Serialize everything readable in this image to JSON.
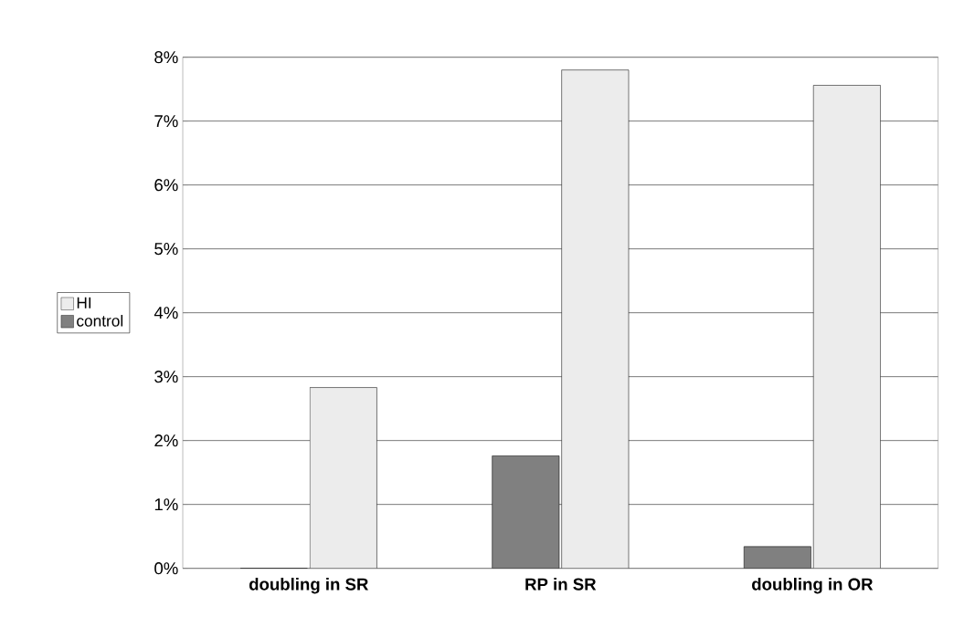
{
  "chart_data": {
    "type": "bar",
    "categories": [
      "doubling in SR",
      "RP in SR",
      "doubling in OR"
    ],
    "series": [
      {
        "name": "control",
        "color": "#808080",
        "values": [
          0,
          1.76,
          0.34
        ]
      },
      {
        "name": "HI",
        "color": "#ececec",
        "values": [
          2.83,
          7.8,
          7.56
        ]
      }
    ],
    "ylim": [
      0,
      8
    ],
    "yticks": [
      {
        "value": 0,
        "label": "0%"
      },
      {
        "value": 1,
        "label": "1%"
      },
      {
        "value": 2,
        "label": "2%"
      },
      {
        "value": 3,
        "label": "3%"
      },
      {
        "value": 4,
        "label": "4%"
      },
      {
        "value": 5,
        "label": "5%"
      },
      {
        "value": 6,
        "label": "6%"
      },
      {
        "value": 7,
        "label": "7%"
      },
      {
        "value": 8,
        "label": "8%"
      }
    ],
    "grid": "y",
    "legend": "left"
  }
}
